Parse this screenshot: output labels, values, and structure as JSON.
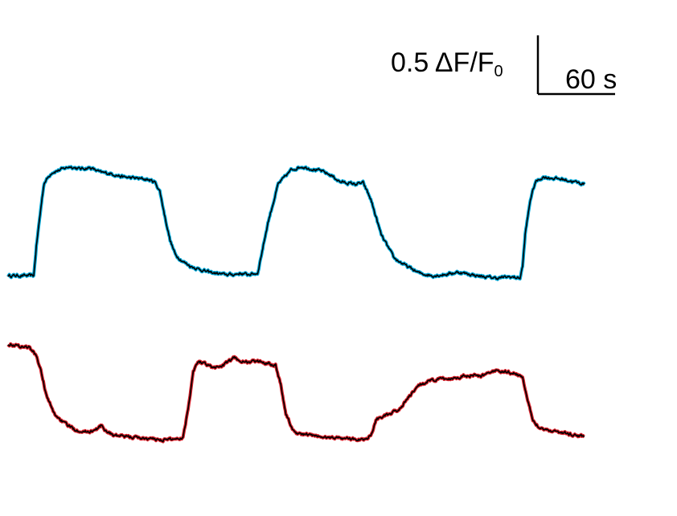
{
  "chart_data": {
    "type": "line",
    "title": "",
    "xlabel": "",
    "ylabel": "",
    "grid": false,
    "legend": "none",
    "scale_bar": {
      "y_value": 0.5,
      "y_label_main": "0.5 ΔF/F",
      "y_label_sub": "0",
      "x_value": 60,
      "x_label": "60 s"
    },
    "x_unit": "s",
    "xlim": [
      0,
      450
    ],
    "series": [
      {
        "color": "#00a8d8",
        "outline": "#000000",
        "x": [
          0,
          20,
          22,
          26,
          28,
          34,
          40,
          48,
          56,
          64,
          72,
          80,
          90,
          100,
          108,
          114,
          118,
          122,
          126,
          130,
          136,
          142,
          150,
          156,
          162,
          168,
          172,
          176,
          180,
          186,
          194,
          202,
          210,
          220,
          228,
          236,
          244,
          252,
          258,
          264,
          270,
          276,
          282,
          290,
          300,
          310,
          320,
          330,
          340,
          350,
          360,
          370,
          380,
          390,
          398,
          400,
          402,
          406,
          410,
          416,
          424,
          432,
          440,
          448
        ],
        "values": [
          0.0,
          0.0,
          0.25,
          0.62,
          0.79,
          0.88,
          0.9,
          0.93,
          0.91,
          0.92,
          0.88,
          0.87,
          0.84,
          0.83,
          0.82,
          0.8,
          0.72,
          0.5,
          0.3,
          0.18,
          0.12,
          0.08,
          0.05,
          0.03,
          0.02,
          0.01,
          0.01,
          0.01,
          0.02,
          0.01,
          0.02,
          0.45,
          0.78,
          0.9,
          0.93,
          0.91,
          0.89,
          0.85,
          0.8,
          0.79,
          0.78,
          0.79,
          0.65,
          0.35,
          0.15,
          0.08,
          0.02,
          0.0,
          0.01,
          0.03,
          0.01,
          -0.01,
          -0.02,
          -0.01,
          -0.02,
          0.08,
          0.35,
          0.65,
          0.8,
          0.84,
          0.83,
          0.82,
          0.8,
          0.78
        ]
      },
      {
        "color": "#d8202a",
        "outline": "#000000",
        "x": [
          0,
          8,
          16,
          22,
          26,
          30,
          36,
          44,
          52,
          60,
          68,
          72,
          76,
          82,
          90,
          100,
          110,
          120,
          130,
          136,
          140,
          144,
          148,
          154,
          160,
          168,
          176,
          184,
          192,
          200,
          208,
          212,
          216,
          222,
          228,
          236,
          246,
          256,
          266,
          276,
          282,
          286,
          290,
          296,
          304,
          312,
          320,
          328,
          336,
          344,
          352,
          360,
          368,
          376,
          384,
          392,
          400,
          404,
          408,
          414,
          422,
          432,
          440,
          448
        ],
        "values": [
          0.9,
          0.88,
          0.87,
          0.8,
          0.65,
          0.45,
          0.3,
          0.22,
          0.17,
          0.15,
          0.16,
          0.2,
          0.16,
          0.12,
          0.11,
          0.1,
          0.09,
          0.08,
          0.09,
          0.1,
          0.35,
          0.67,
          0.75,
          0.73,
          0.69,
          0.72,
          0.78,
          0.74,
          0.75,
          0.74,
          0.72,
          0.55,
          0.3,
          0.15,
          0.13,
          0.12,
          0.1,
          0.1,
          0.09,
          0.08,
          0.12,
          0.25,
          0.28,
          0.29,
          0.34,
          0.45,
          0.55,
          0.58,
          0.6,
          0.6,
          0.62,
          0.63,
          0.62,
          0.67,
          0.66,
          0.65,
          0.62,
          0.4,
          0.25,
          0.18,
          0.16,
          0.14,
          0.12,
          0.11
        ]
      }
    ]
  }
}
